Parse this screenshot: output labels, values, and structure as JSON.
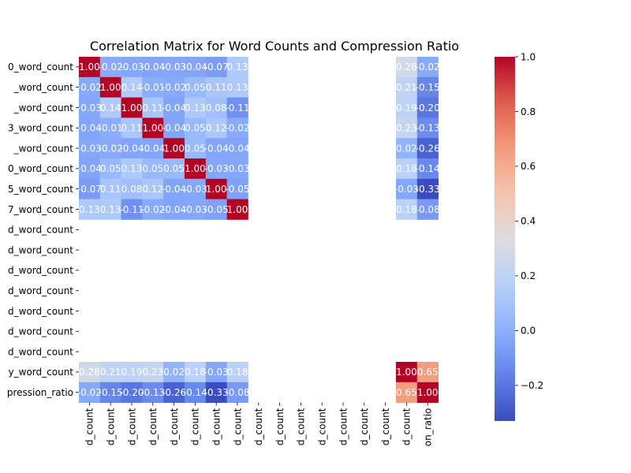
{
  "chart_data": {
    "type": "heatmap",
    "title": "Correlation Matrix for Word Counts and Compression Ratio",
    "xlabel": "",
    "ylabel": "",
    "row_labels": [
      "0_word_count",
      "_word_count",
      "_word_count",
      "3_word_count",
      "_word_count",
      "0_word_count",
      "5_word_count",
      "7_word_count",
      "d_word_count",
      "d_word_count",
      "d_word_count",
      "d_word_count",
      "d_word_count",
      "d_word_count",
      "d_word_count",
      "y_word_count",
      "pression_ratio"
    ],
    "col_labels": [
      "d_count",
      "d_count",
      "d_count",
      "d_count",
      "d_count",
      "d_count",
      "d_count",
      "d_count",
      "d_count",
      "d_count",
      "d_count",
      "d_count",
      "d_count",
      "d_count",
      "d_count",
      "d_count",
      "on_ratio"
    ],
    "values": [
      [
        1.0,
        -0.02,
        -0.03,
        -0.04,
        -0.03,
        -0.04,
        -0.07,
        0.13,
        null,
        null,
        null,
        null,
        null,
        null,
        null,
        0.28,
        -0.02
      ],
      [
        -0.02,
        1.0,
        0.14,
        -0.01,
        -0.02,
        0.05,
        0.11,
        0.13,
        null,
        null,
        null,
        null,
        null,
        null,
        null,
        0.21,
        -0.15
      ],
      [
        -0.03,
        0.14,
        1.0,
        0.11,
        -0.04,
        0.13,
        0.08,
        -0.11,
        null,
        null,
        null,
        null,
        null,
        null,
        null,
        0.19,
        -0.2
      ],
      [
        -0.04,
        -0.01,
        0.11,
        1.0,
        -0.04,
        0.05,
        0.12,
        -0.02,
        null,
        null,
        null,
        null,
        null,
        null,
        null,
        0.23,
        -0.13
      ],
      [
        -0.03,
        -0.02,
        -0.04,
        -0.04,
        1.0,
        0.05,
        -0.04,
        -0.04,
        null,
        null,
        null,
        null,
        null,
        null,
        null,
        0.02,
        -0.26
      ],
      [
        -0.04,
        0.05,
        0.13,
        0.05,
        0.05,
        1.0,
        -0.03,
        -0.03,
        null,
        null,
        null,
        null,
        null,
        null,
        null,
        0.18,
        -0.14
      ],
      [
        -0.07,
        0.11,
        0.08,
        0.12,
        -0.04,
        -0.03,
        1.0,
        -0.05,
        null,
        null,
        null,
        null,
        null,
        null,
        null,
        -0.03,
        -0.33
      ],
      [
        0.13,
        0.13,
        -0.11,
        -0.02,
        -0.04,
        -0.03,
        -0.05,
        1.0,
        null,
        null,
        null,
        null,
        null,
        null,
        null,
        0.18,
        -0.08
      ],
      [
        null,
        null,
        null,
        null,
        null,
        null,
        null,
        null,
        null,
        null,
        null,
        null,
        null,
        null,
        null,
        null,
        null
      ],
      [
        null,
        null,
        null,
        null,
        null,
        null,
        null,
        null,
        null,
        null,
        null,
        null,
        null,
        null,
        null,
        null,
        null
      ],
      [
        null,
        null,
        null,
        null,
        null,
        null,
        null,
        null,
        null,
        null,
        null,
        null,
        null,
        null,
        null,
        null,
        null
      ],
      [
        null,
        null,
        null,
        null,
        null,
        null,
        null,
        null,
        null,
        null,
        null,
        null,
        null,
        null,
        null,
        null,
        null
      ],
      [
        null,
        null,
        null,
        null,
        null,
        null,
        null,
        null,
        null,
        null,
        null,
        null,
        null,
        null,
        null,
        null,
        null
      ],
      [
        null,
        null,
        null,
        null,
        null,
        null,
        null,
        null,
        null,
        null,
        null,
        null,
        null,
        null,
        null,
        null,
        null
      ],
      [
        null,
        null,
        null,
        null,
        null,
        null,
        null,
        null,
        null,
        null,
        null,
        null,
        null,
        null,
        null,
        null,
        null
      ],
      [
        0.28,
        0.21,
        0.19,
        0.23,
        0.02,
        0.18,
        -0.03,
        0.18,
        null,
        null,
        null,
        null,
        null,
        null,
        null,
        1.0,
        0.65
      ],
      [
        -0.02,
        -0.15,
        -0.2,
        -0.13,
        -0.26,
        -0.14,
        -0.33,
        -0.08,
        null,
        null,
        null,
        null,
        null,
        null,
        null,
        0.65,
        1.0
      ]
    ],
    "colorbar": {
      "colormap": "coolwarm",
      "vmin": -0.33,
      "vmax": 1.0,
      "ticks": [
        -0.2,
        0.0,
        0.2,
        0.4,
        0.6,
        0.8,
        1.0
      ],
      "tick_labels": [
        "−0.2",
        "0.0",
        "0.2",
        "0.4",
        "0.6",
        "0.8",
        "1.0"
      ]
    },
    "annotation_format": "2 decimals",
    "grid": false
  }
}
